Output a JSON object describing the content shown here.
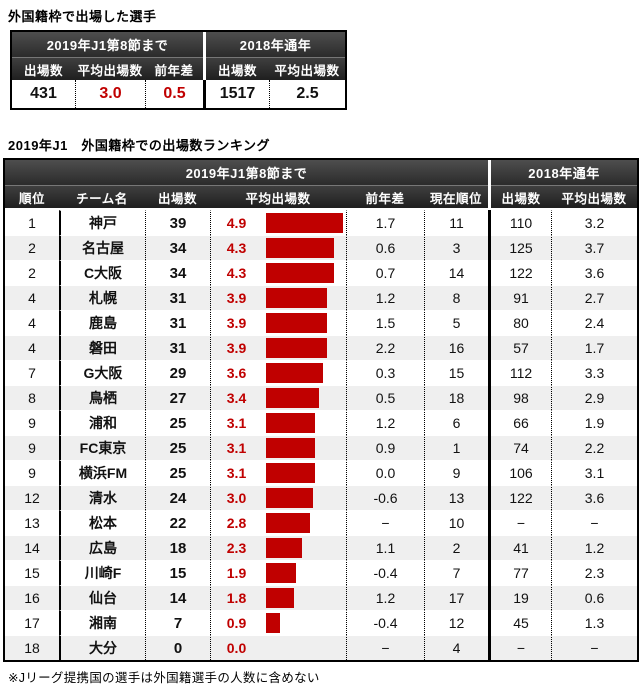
{
  "colors": {
    "accent_red": "#c00000",
    "stripe": "#efefef",
    "header_dark": "#333333"
  },
  "summary": {
    "title": "外国籍枠で出場した選手",
    "group1": "2019年J1第8節まで",
    "group2": "2018年通年",
    "columns": [
      "出場数",
      "平均出場数",
      "前年差",
      "出場数",
      "平均出場数"
    ],
    "values": [
      "431",
      "3.0",
      "0.5",
      "1517",
      "2.5"
    ]
  },
  "ranking": {
    "title": "2019年J1　外国籍枠での出場数ランキング",
    "group1": "2019年J1第8節まで",
    "group2": "2018年通年",
    "columns": [
      "順位",
      "チーム名",
      "出場数",
      "平均出場数",
      "前年差",
      "現在順位",
      "出場数",
      "平均出場数"
    ],
    "bar_max": 4.9,
    "rows": [
      {
        "rank": "1",
        "team": "神戸",
        "apps": "39",
        "avg": "4.9",
        "avg_num": 4.9,
        "diff": "1.7",
        "current_rank": "11",
        "apps_2018": "110",
        "avg_2018": "3.2"
      },
      {
        "rank": "2",
        "team": "名古屋",
        "apps": "34",
        "avg": "4.3",
        "avg_num": 4.3,
        "diff": "0.6",
        "current_rank": "3",
        "apps_2018": "125",
        "avg_2018": "3.7"
      },
      {
        "rank": "2",
        "team": "C大阪",
        "apps": "34",
        "avg": "4.3",
        "avg_num": 4.3,
        "diff": "0.7",
        "current_rank": "14",
        "apps_2018": "122",
        "avg_2018": "3.6"
      },
      {
        "rank": "4",
        "team": "札幌",
        "apps": "31",
        "avg": "3.9",
        "avg_num": 3.9,
        "diff": "1.2",
        "current_rank": "8",
        "apps_2018": "91",
        "avg_2018": "2.7"
      },
      {
        "rank": "4",
        "team": "鹿島",
        "apps": "31",
        "avg": "3.9",
        "avg_num": 3.9,
        "diff": "1.5",
        "current_rank": "5",
        "apps_2018": "80",
        "avg_2018": "2.4"
      },
      {
        "rank": "4",
        "team": "磐田",
        "apps": "31",
        "avg": "3.9",
        "avg_num": 3.9,
        "diff": "2.2",
        "current_rank": "16",
        "apps_2018": "57",
        "avg_2018": "1.7"
      },
      {
        "rank": "7",
        "team": "G大阪",
        "apps": "29",
        "avg": "3.6",
        "avg_num": 3.6,
        "diff": "0.3",
        "current_rank": "15",
        "apps_2018": "112",
        "avg_2018": "3.3"
      },
      {
        "rank": "8",
        "team": "鳥栖",
        "apps": "27",
        "avg": "3.4",
        "avg_num": 3.4,
        "diff": "0.5",
        "current_rank": "18",
        "apps_2018": "98",
        "avg_2018": "2.9"
      },
      {
        "rank": "9",
        "team": "浦和",
        "apps": "25",
        "avg": "3.1",
        "avg_num": 3.1,
        "diff": "1.2",
        "current_rank": "6",
        "apps_2018": "66",
        "avg_2018": "1.9"
      },
      {
        "rank": "9",
        "team": "FC東京",
        "apps": "25",
        "avg": "3.1",
        "avg_num": 3.1,
        "diff": "0.9",
        "current_rank": "1",
        "apps_2018": "74",
        "avg_2018": "2.2"
      },
      {
        "rank": "9",
        "team": "横浜FM",
        "apps": "25",
        "avg": "3.1",
        "avg_num": 3.1,
        "diff": "0.0",
        "current_rank": "9",
        "apps_2018": "106",
        "avg_2018": "3.1"
      },
      {
        "rank": "12",
        "team": "清水",
        "apps": "24",
        "avg": "3.0",
        "avg_num": 3.0,
        "diff": "-0.6",
        "current_rank": "13",
        "apps_2018": "122",
        "avg_2018": "3.6"
      },
      {
        "rank": "13",
        "team": "松本",
        "apps": "22",
        "avg": "2.8",
        "avg_num": 2.8,
        "diff": "−",
        "current_rank": "10",
        "apps_2018": "−",
        "avg_2018": "−"
      },
      {
        "rank": "14",
        "team": "広島",
        "apps": "18",
        "avg": "2.3",
        "avg_num": 2.3,
        "diff": "1.1",
        "current_rank": "2",
        "apps_2018": "41",
        "avg_2018": "1.2"
      },
      {
        "rank": "15",
        "team": "川崎F",
        "apps": "15",
        "avg": "1.9",
        "avg_num": 1.9,
        "diff": "-0.4",
        "current_rank": "7",
        "apps_2018": "77",
        "avg_2018": "2.3"
      },
      {
        "rank": "16",
        "team": "仙台",
        "apps": "14",
        "avg": "1.8",
        "avg_num": 1.8,
        "diff": "1.2",
        "current_rank": "17",
        "apps_2018": "19",
        "avg_2018": "0.6"
      },
      {
        "rank": "17",
        "team": "湘南",
        "apps": "7",
        "avg": "0.9",
        "avg_num": 0.9,
        "diff": "-0.4",
        "current_rank": "12",
        "apps_2018": "45",
        "avg_2018": "1.3"
      },
      {
        "rank": "18",
        "team": "大分",
        "apps": "0",
        "avg": "0.0",
        "avg_num": 0.0,
        "diff": "−",
        "current_rank": "4",
        "apps_2018": "−",
        "avg_2018": "−"
      }
    ]
  },
  "chart_data": {
    "type": "bar",
    "orientation": "horizontal",
    "title": "2019年J1　外国籍枠での出場数ランキング",
    "series_label": "平均出場数",
    "categories": [
      "神戸",
      "名古屋",
      "C大阪",
      "札幌",
      "鹿島",
      "磐田",
      "G大阪",
      "鳥栖",
      "浦和",
      "FC東京",
      "横浜FM",
      "清水",
      "松本",
      "広島",
      "川崎F",
      "仙台",
      "湘南",
      "大分"
    ],
    "values": [
      4.9,
      4.3,
      4.3,
      3.9,
      3.9,
      3.9,
      3.6,
      3.4,
      3.1,
      3.1,
      3.1,
      3.0,
      2.8,
      2.3,
      1.9,
      1.8,
      0.9,
      0.0
    ],
    "xlim": [
      0,
      4.9
    ],
    "grid": false,
    "legend": false,
    "bar_color": "#c00000"
  },
  "footnote": "※Jリーグ提携国の選手は外国籍選手の人数に含めない"
}
